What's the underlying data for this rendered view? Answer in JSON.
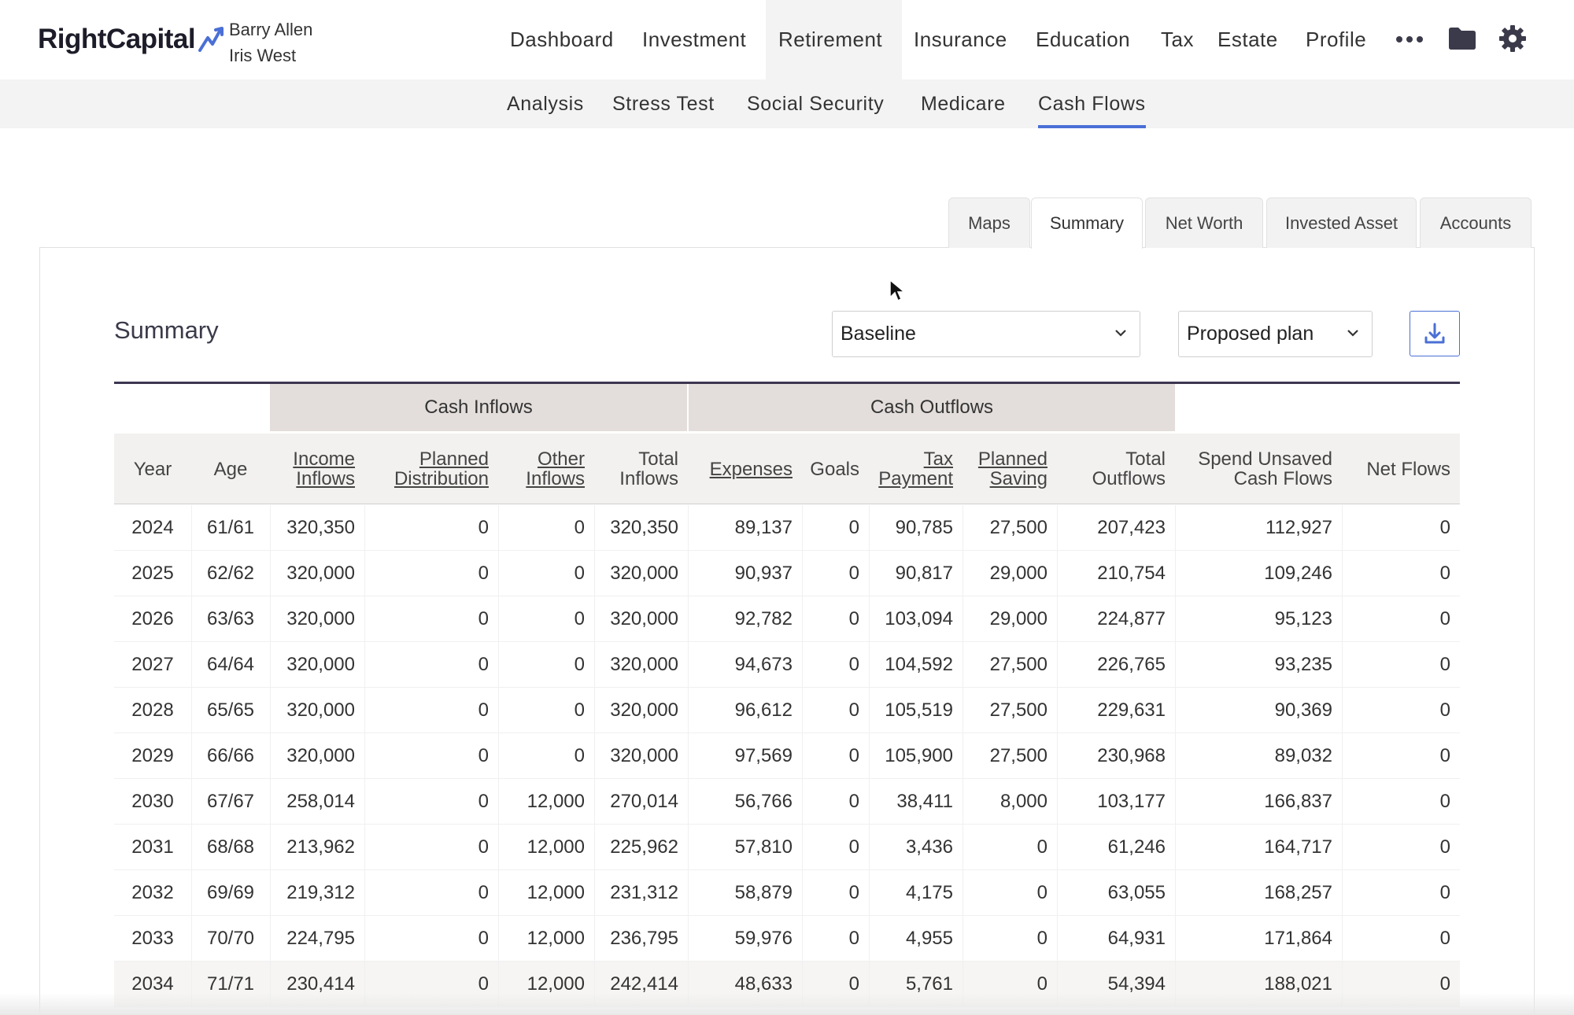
{
  "header": {
    "logo_text": "RightCapital",
    "clients": [
      "Barry Allen",
      "Iris West"
    ],
    "nav": [
      "Dashboard",
      "Investment",
      "Retirement",
      "Insurance",
      "Education",
      "Tax",
      "Estate",
      "Profile"
    ],
    "active_nav": "Retirement",
    "icons": [
      "more-icon",
      "folder-icon",
      "gear-icon"
    ]
  },
  "subnav": {
    "items": [
      "Analysis",
      "Stress Test",
      "Social Security",
      "Medicare",
      "Cash Flows"
    ],
    "active": "Cash Flows"
  },
  "tabs": {
    "items": [
      "Maps",
      "Summary",
      "Net Worth",
      "Invested Asset",
      "Accounts"
    ],
    "active": "Summary"
  },
  "summary": {
    "title": "Summary",
    "scenario_select": "Baseline",
    "plan_select": "Proposed plan",
    "download_icon": "download-icon"
  },
  "table": {
    "groups": {
      "cash_inflows": "Cash Inflows",
      "cash_outflows": "Cash Outflows"
    },
    "columns": [
      "Year",
      "Age",
      "Income Inflows",
      "Planned Distribution",
      "Other Inflows",
      "Total Inflows",
      "Expenses",
      "Goals",
      "Tax Payment",
      "Planned Saving",
      "Total Outflows",
      "Spend Unsaved Cash Flows",
      "Net Flows"
    ],
    "rows": [
      [
        "2024",
        "61/61",
        "320,350",
        "0",
        "0",
        "320,350",
        "89,137",
        "0",
        "90,785",
        "27,500",
        "207,423",
        "112,927",
        "0"
      ],
      [
        "2025",
        "62/62",
        "320,000",
        "0",
        "0",
        "320,000",
        "90,937",
        "0",
        "90,817",
        "29,000",
        "210,754",
        "109,246",
        "0"
      ],
      [
        "2026",
        "63/63",
        "320,000",
        "0",
        "0",
        "320,000",
        "92,782",
        "0",
        "103,094",
        "29,000",
        "224,877",
        "95,123",
        "0"
      ],
      [
        "2027",
        "64/64",
        "320,000",
        "0",
        "0",
        "320,000",
        "94,673",
        "0",
        "104,592",
        "27,500",
        "226,765",
        "93,235",
        "0"
      ],
      [
        "2028",
        "65/65",
        "320,000",
        "0",
        "0",
        "320,000",
        "96,612",
        "0",
        "105,519",
        "27,500",
        "229,631",
        "90,369",
        "0"
      ],
      [
        "2029",
        "66/66",
        "320,000",
        "0",
        "0",
        "320,000",
        "97,569",
        "0",
        "105,900",
        "27,500",
        "230,968",
        "89,032",
        "0"
      ],
      [
        "2030",
        "67/67",
        "258,014",
        "0",
        "12,000",
        "270,014",
        "56,766",
        "0",
        "38,411",
        "8,000",
        "103,177",
        "166,837",
        "0"
      ],
      [
        "2031",
        "68/68",
        "213,962",
        "0",
        "12,000",
        "225,962",
        "57,810",
        "0",
        "3,436",
        "0",
        "61,246",
        "164,717",
        "0"
      ],
      [
        "2032",
        "69/69",
        "219,312",
        "0",
        "12,000",
        "231,312",
        "58,879",
        "0",
        "4,175",
        "0",
        "63,055",
        "168,257",
        "0"
      ],
      [
        "2033",
        "70/70",
        "224,795",
        "0",
        "12,000",
        "236,795",
        "59,976",
        "0",
        "4,955",
        "0",
        "64,931",
        "171,864",
        "0"
      ],
      [
        "2034",
        "71/71",
        "230,414",
        "0",
        "12,000",
        "242,414",
        "48,633",
        "0",
        "5,761",
        "0",
        "54,394",
        "188,021",
        "0"
      ]
    ]
  },
  "colors": {
    "accent": "#4a6fd6",
    "logo_dark": "#1d1d2a",
    "group_header_bg": "#e3dedb",
    "header_bg": "#f2f1ef"
  }
}
